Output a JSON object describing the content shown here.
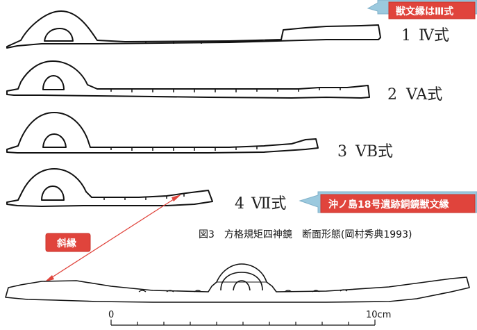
{
  "profiles": [
    {
      "number": "1",
      "style": "Ⅳ式"
    },
    {
      "number": "2",
      "style": "VA式"
    },
    {
      "number": "3",
      "style": "VB式"
    },
    {
      "number": "4",
      "style": "Ⅶ式"
    }
  ],
  "callouts": {
    "top": "獣文縁はⅢ式",
    "middle": "沖ノ島18号遺跡銅鏡獣文縁",
    "slant": "斜縁"
  },
  "caption": "図3　方格規矩四神鏡　断面形態(岡村秀典1993)",
  "scale": {
    "start": "0",
    "end": "10cm"
  },
  "colors": {
    "callout_fill": "#e0443c",
    "callout_bubble": "#9bc9de",
    "arrow": "#e0443c",
    "line": "#111111"
  }
}
